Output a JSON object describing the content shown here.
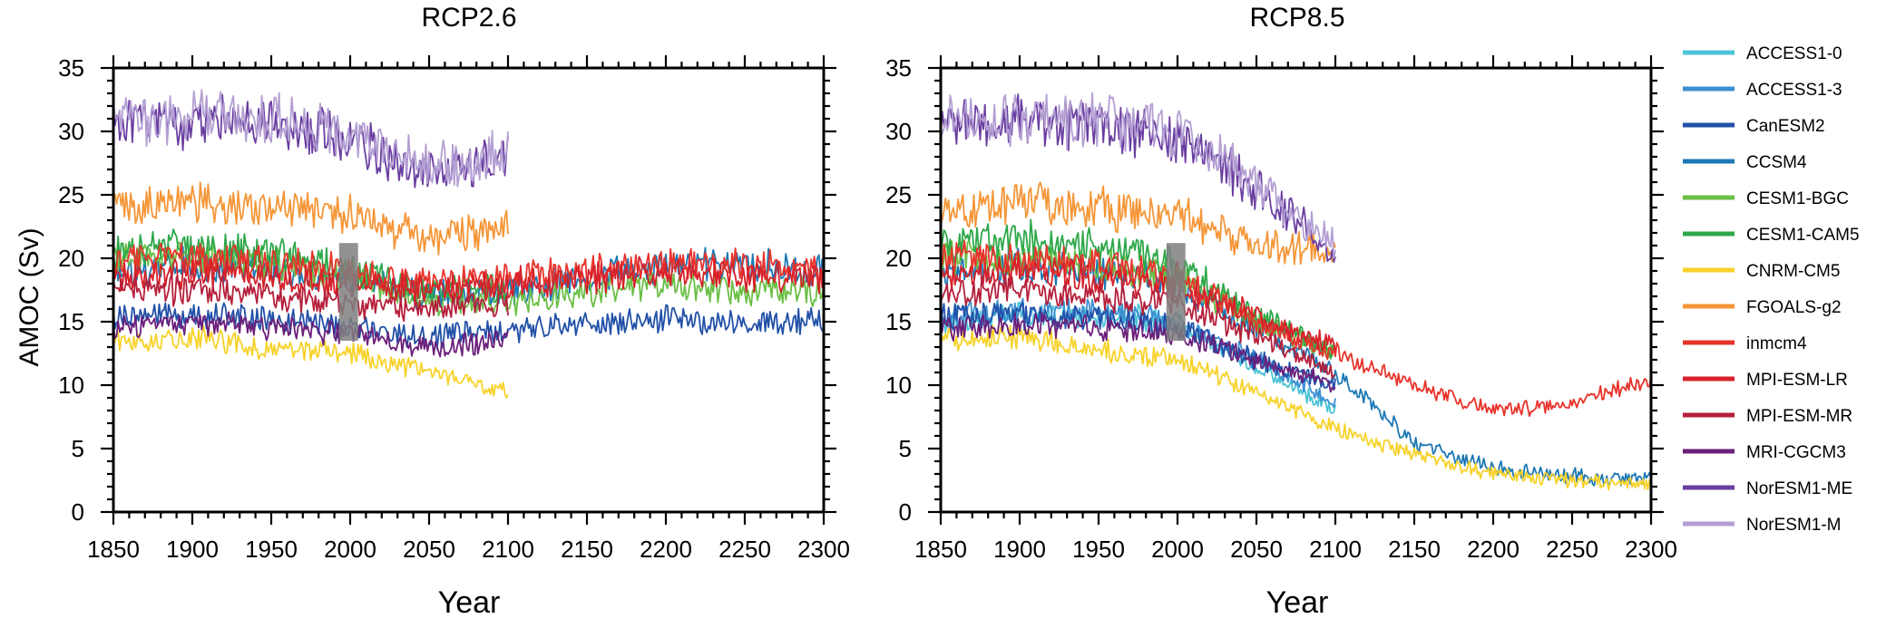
{
  "chart_data": [
    {
      "type": "line",
      "title": "RCP2.6",
      "xlabel": "Year",
      "ylabel": "AMOC (Sv)",
      "xlim": [
        1850,
        2300
      ],
      "ylim": [
        0,
        35
      ],
      "xticks": [
        1850,
        1900,
        1950,
        2000,
        2050,
        2100,
        2150,
        2200,
        2250,
        2300
      ],
      "yticks": [
        0,
        5,
        10,
        15,
        20,
        25,
        30,
        35
      ],
      "highlight": {
        "x": [
          1993,
          2005
        ],
        "y": [
          13.5,
          21.2
        ],
        "color": "#7f7f7f"
      },
      "series": [
        {
          "name": "CanESM2",
          "color": "#2150a8",
          "x": [
            1850,
            1900,
            1950,
            2000,
            2050,
            2100,
            2150,
            2200,
            2250,
            2300
          ],
          "y": [
            15.5,
            15.5,
            15.2,
            14.5,
            13.8,
            14.3,
            14.8,
            15.2,
            15.0,
            15.0
          ]
        },
        {
          "name": "CCSM4",
          "color": "#1c78b4",
          "x": [
            1850,
            1900,
            1950,
            2000,
            2050,
            2100,
            2150,
            2200,
            2250,
            2300
          ],
          "y": [
            19.0,
            19.5,
            19.0,
            18.5,
            17.0,
            17.5,
            18.5,
            19.5,
            19.5,
            19.0
          ]
        },
        {
          "name": "CESM1-BGC",
          "color": "#6abf45",
          "x": [
            1850,
            1900,
            1950,
            2000,
            2050,
            2100,
            2150,
            2200,
            2250,
            2300
          ],
          "y": [
            20.0,
            20.0,
            19.5,
            18.5,
            16.5,
            16.5,
            17.5,
            17.8,
            17.5,
            17.3
          ]
        },
        {
          "name": "CESM1-CAM5",
          "color": "#2ea84a",
          "x": [
            1850,
            1900,
            1950,
            2000,
            2050,
            2100
          ],
          "y": [
            20.5,
            21.0,
            20.5,
            19.0,
            17.5,
            17.5
          ]
        },
        {
          "name": "CNRM-CM5",
          "color": "#f7d22a",
          "x": [
            1850,
            1900,
            1950,
            2000,
            2050,
            2100
          ],
          "y": [
            13.5,
            13.8,
            12.8,
            12.5,
            11.0,
            9.5
          ]
        },
        {
          "name": "FGOALS-g2",
          "color": "#f59638",
          "x": [
            1850,
            1900,
            1950,
            2000,
            2050,
            2100
          ],
          "y": [
            24.0,
            24.5,
            24.0,
            23.5,
            21.5,
            22.5
          ]
        },
        {
          "name": "inmcm4",
          "color": "#e8332b",
          "x": [
            1850,
            1900,
            1950,
            2000,
            2050,
            2100,
            2150,
            2200,
            2250,
            2300
          ],
          "y": [
            20.0,
            20.0,
            19.5,
            19.0,
            18.0,
            18.5,
            19.0,
            19.5,
            19.5,
            19.0
          ]
        },
        {
          "name": "MPI-ESM-LR",
          "color": "#d7212a",
          "x": [
            1850,
            1900,
            1950,
            2000,
            2050,
            2100,
            2150,
            2200,
            2250,
            2300
          ],
          "y": [
            18.5,
            19.0,
            18.5,
            18.0,
            17.5,
            18.0,
            18.5,
            18.8,
            18.5,
            18.5
          ]
        },
        {
          "name": "MPI-ESM-MR",
          "color": "#b51f3a",
          "x": [
            1850,
            1900,
            1950,
            2000,
            2050,
            2100
          ],
          "y": [
            17.5,
            17.5,
            17.0,
            16.5,
            16.0,
            16.5
          ]
        },
        {
          "name": "MRI-CGCM3",
          "color": "#6b1f7a",
          "x": [
            1850,
            1900,
            1950,
            2000,
            2050,
            2100
          ],
          "y": [
            14.5,
            14.8,
            14.5,
            14.0,
            13.0,
            13.5
          ]
        },
        {
          "name": "NorESM1-ME",
          "color": "#6a3ea0",
          "x": [
            1850,
            1900,
            1950,
            2000,
            2050,
            2100
          ],
          "y": [
            30.5,
            30.8,
            30.5,
            29.5,
            26.5,
            28.0
          ]
        },
        {
          "name": "NorESM1-M",
          "color": "#b39fd3",
          "x": [
            1850,
            1900,
            1950,
            2000,
            2050,
            2100
          ],
          "y": [
            30.8,
            31.0,
            30.8,
            30.0,
            27.0,
            28.3
          ]
        }
      ]
    },
    {
      "type": "line",
      "title": "RCP8.5",
      "xlabel": "Year",
      "ylabel": "",
      "xlim": [
        1850,
        2300
      ],
      "ylim": [
        0,
        35
      ],
      "xticks": [
        1850,
        1900,
        1950,
        2000,
        2050,
        2100,
        2150,
        2200,
        2250,
        2300
      ],
      "yticks": [
        0,
        5,
        10,
        15,
        20,
        25,
        30,
        35
      ],
      "highlight": {
        "x": [
          1993,
          2005
        ],
        "y": [
          13.5,
          21.2
        ],
        "color": "#7f7f7f"
      },
      "series": [
        {
          "name": "ACCESS1-0",
          "color": "#4cc3d8",
          "x": [
            1850,
            1900,
            1950,
            2000,
            2050,
            2100
          ],
          "y": [
            15.0,
            15.5,
            15.5,
            15.0,
            11.5,
            8.0
          ]
        },
        {
          "name": "ACCESS1-3",
          "color": "#3c8fd0",
          "x": [
            1850,
            1900,
            1950,
            2000,
            2050,
            2100
          ],
          "y": [
            15.5,
            15.8,
            15.8,
            15.0,
            12.0,
            8.5
          ]
        },
        {
          "name": "CanESM2",
          "color": "#2150a8",
          "x": [
            1850,
            1900,
            1950,
            2000,
            2050,
            2100
          ],
          "y": [
            15.5,
            15.5,
            15.2,
            14.5,
            12.0,
            10.0
          ]
        },
        {
          "name": "CCSM4",
          "color": "#1c78b4",
          "x": [
            1850,
            1900,
            1950,
            2000,
            2050,
            2100,
            2150,
            2200,
            2250,
            2300
          ],
          "y": [
            19.0,
            19.5,
            19.0,
            18.0,
            14.5,
            11.0,
            5.5,
            3.5,
            2.8,
            2.5
          ]
        },
        {
          "name": "CESM1-BGC",
          "color": "#6abf45",
          "x": [
            1850,
            1900,
            1950,
            2000,
            2050,
            2100
          ],
          "y": [
            20.0,
            20.0,
            19.5,
            18.5,
            15.0,
            12.5
          ]
        },
        {
          "name": "CESM1-CAM5",
          "color": "#2ea84a",
          "x": [
            1850,
            1900,
            1950,
            2000,
            2050,
            2100
          ],
          "y": [
            21.0,
            21.5,
            21.0,
            19.5,
            15.5,
            12.5
          ]
        },
        {
          "name": "CNRM-CM5",
          "color": "#f7d22a",
          "x": [
            1850,
            1900,
            1950,
            2000,
            2050,
            2100,
            2150,
            2200,
            2250,
            2300
          ],
          "y": [
            13.5,
            13.8,
            12.8,
            12.0,
            9.5,
            6.5,
            4.5,
            3.0,
            2.5,
            2.2
          ]
        },
        {
          "name": "FGOALS-g2",
          "color": "#f59638",
          "x": [
            1850,
            1900,
            1950,
            2000,
            2050,
            2100
          ],
          "y": [
            24.0,
            24.5,
            24.0,
            23.5,
            21.0,
            20.5
          ]
        },
        {
          "name": "inmcm4",
          "color": "#e8332b",
          "x": [
            1850,
            1900,
            1950,
            2000,
            2050,
            2100,
            2150,
            2200,
            2250,
            2300
          ],
          "y": [
            20.0,
            20.0,
            19.5,
            18.5,
            15.0,
            12.5,
            10.0,
            8.0,
            8.5,
            10.5
          ]
        },
        {
          "name": "MPI-ESM-LR",
          "color": "#d7212a",
          "x": [
            1850,
            1900,
            1950,
            2000,
            2050,
            2100
          ],
          "y": [
            18.5,
            19.0,
            18.5,
            17.5,
            15.5,
            13.0
          ]
        },
        {
          "name": "MPI-ESM-MR",
          "color": "#b51f3a",
          "x": [
            1850,
            1900,
            1950,
            2000,
            2050,
            2100
          ],
          "y": [
            17.5,
            17.5,
            17.0,
            16.5,
            14.0,
            11.0
          ]
        },
        {
          "name": "MRI-CGCM3",
          "color": "#6b1f7a",
          "x": [
            1850,
            1900,
            1950,
            2000,
            2050,
            2100
          ],
          "y": [
            14.5,
            14.8,
            14.5,
            14.0,
            12.0,
            10.0
          ]
        },
        {
          "name": "NorESM1-ME",
          "color": "#6a3ea0",
          "x": [
            1850,
            1900,
            1950,
            2000,
            2050,
            2100
          ],
          "y": [
            30.5,
            30.8,
            30.5,
            29.5,
            25.5,
            20.5
          ]
        },
        {
          "name": "NorESM1-M",
          "color": "#b39fd3",
          "x": [
            1850,
            1900,
            1950,
            2000,
            2050,
            2100
          ],
          "y": [
            30.8,
            31.0,
            30.8,
            30.0,
            26.0,
            21.0
          ]
        }
      ]
    }
  ],
  "legend": {
    "placement": "right",
    "entries": [
      {
        "label": "ACCESS1-0",
        "color": "#4cc3d8"
      },
      {
        "label": "ACCESS1-3",
        "color": "#3c8fd0"
      },
      {
        "label": "CanESM2",
        "color": "#2150a8"
      },
      {
        "label": "CCSM4",
        "color": "#1c78b4"
      },
      {
        "label": "CESM1-BGC",
        "color": "#6abf45"
      },
      {
        "label": "CESM1-CAM5",
        "color": "#2ea84a"
      },
      {
        "label": "CNRM-CM5",
        "color": "#f7d22a"
      },
      {
        "label": "FGOALS-g2",
        "color": "#f59638"
      },
      {
        "label": "inmcm4",
        "color": "#e8332b"
      },
      {
        "label": "MPI-ESM-LR",
        "color": "#d7212a"
      },
      {
        "label": "MPI-ESM-MR",
        "color": "#b51f3a"
      },
      {
        "label": "MRI-CGCM3",
        "color": "#6b1f7a"
      },
      {
        "label": "NorESM1-ME",
        "color": "#6a3ea0"
      },
      {
        "label": "NorESM1-M",
        "color": "#b39fd3"
      }
    ]
  }
}
